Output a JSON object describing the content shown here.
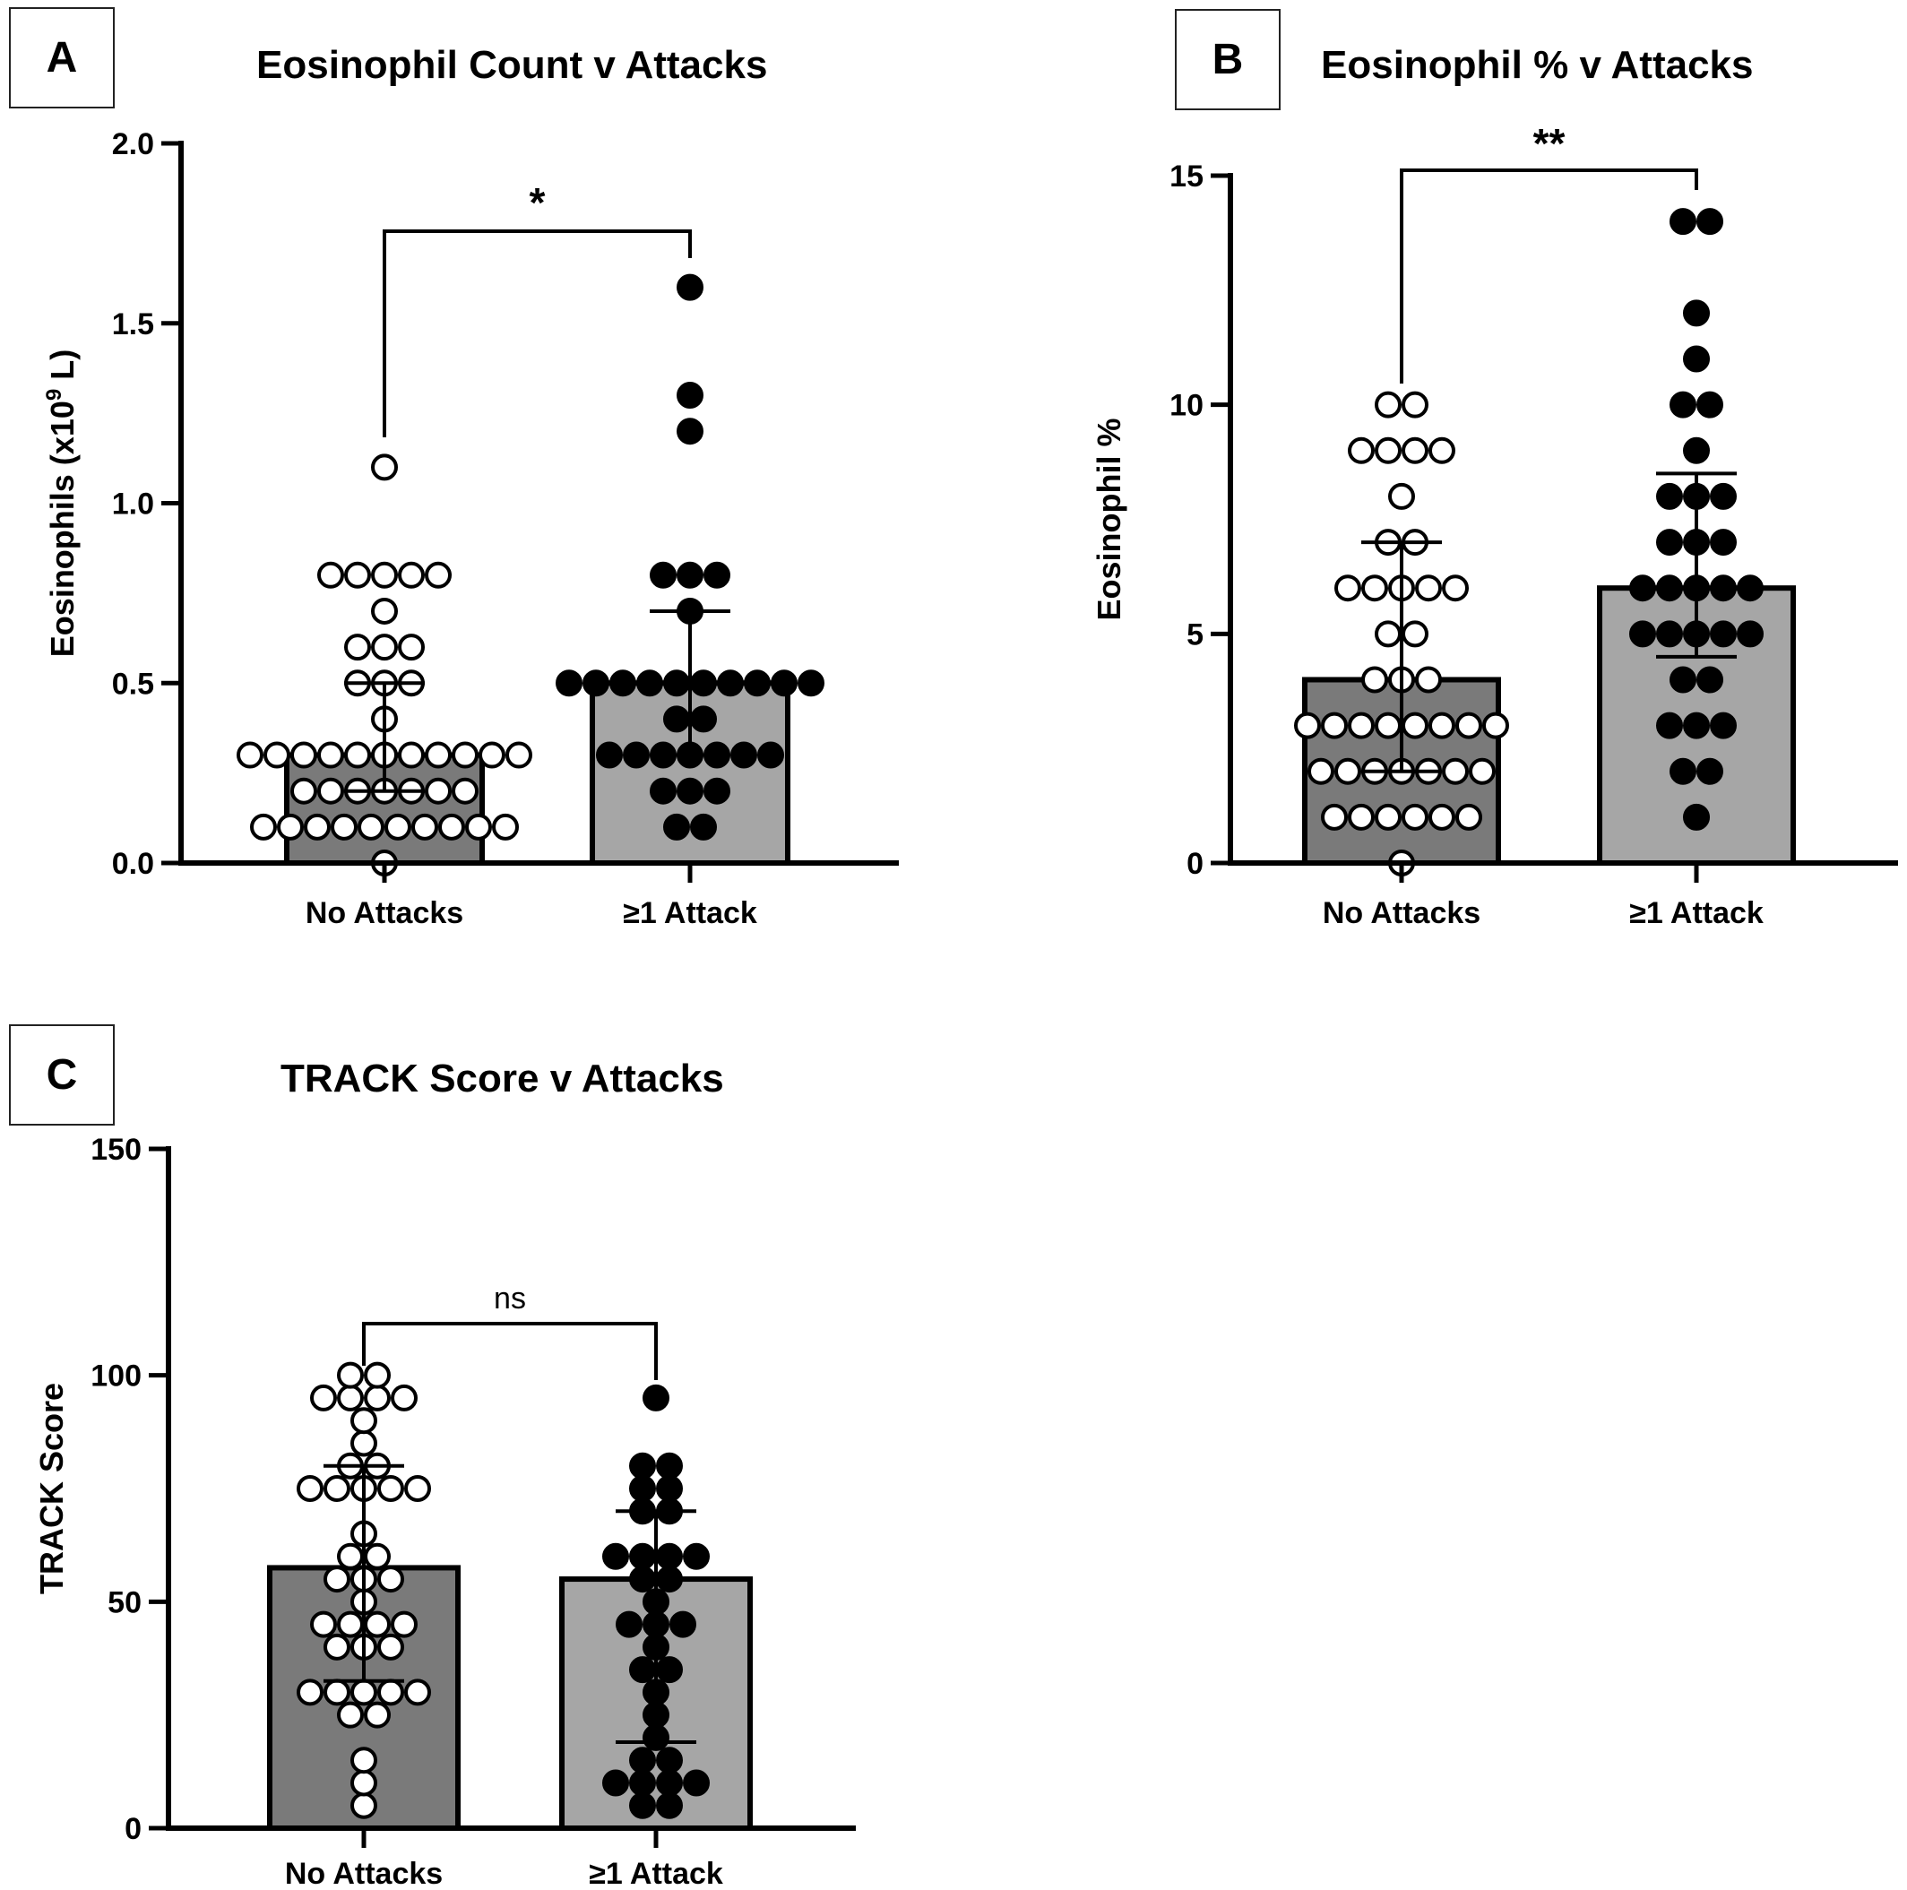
{
  "chart_data": [
    {
      "panel": "A",
      "type": "bar",
      "title": "Eosinophil Count v Attacks",
      "ylabel": "Eosinophils (x10",
      "ylabel_sup": "9",
      "ylabel_suffix": " L)",
      "ylim": [
        0,
        2.0
      ],
      "yticks": [
        0.0,
        0.5,
        1.0,
        1.5,
        2.0
      ],
      "ytick_labels": [
        "0.0",
        "0.5",
        "1.0",
        "1.5",
        "2.0"
      ],
      "categories": [
        "No Attacks",
        "≥1 Attack"
      ],
      "bar_colors": [
        "#7a7a7a",
        "#a6a6a6"
      ],
      "values": [
        0.3,
        0.5
      ],
      "error_bars": [
        [
          0.2,
          0.5
        ],
        [
          0.3,
          0.7
        ]
      ],
      "points": [
        {
          "filled": false,
          "values": [
            1.1,
            0.8,
            0.8,
            0.8,
            0.8,
            0.8,
            0.7,
            0.6,
            0.6,
            0.6,
            0.5,
            0.5,
            0.5,
            0.4,
            0.3,
            0.3,
            0.3,
            0.3,
            0.3,
            0.3,
            0.3,
            0.3,
            0.3,
            0.3,
            0.3,
            0.2,
            0.2,
            0.2,
            0.2,
            0.2,
            0.2,
            0.2,
            0.1,
            0.1,
            0.1,
            0.1,
            0.1,
            0.1,
            0.1,
            0.1,
            0.1,
            0.1,
            0.0
          ]
        },
        {
          "filled": true,
          "values": [
            1.6,
            1.3,
            1.2,
            0.8,
            0.8,
            0.8,
            0.7,
            0.5,
            0.5,
            0.5,
            0.5,
            0.5,
            0.5,
            0.5,
            0.5,
            0.5,
            0.5,
            0.4,
            0.4,
            0.3,
            0.3,
            0.3,
            0.3,
            0.3,
            0.3,
            0.3,
            0.2,
            0.2,
            0.2,
            0.1,
            0.1
          ]
        }
      ],
      "significance": "*"
    },
    {
      "panel": "B",
      "type": "bar",
      "title": "Eosinophil % v Attacks",
      "ylabel": "Eosinophil %",
      "ylabel_sup": "",
      "ylabel_suffix": "",
      "ylim": [
        0,
        15
      ],
      "yticks": [
        0,
        5,
        10,
        15
      ],
      "ytick_labels": [
        "0",
        "5",
        "10",
        "15"
      ],
      "categories": [
        "No Attacks",
        "≥1 Attack"
      ],
      "bar_colors": [
        "#7a7a7a",
        "#a6a6a6"
      ],
      "values": [
        4,
        6
      ],
      "error_bars": [
        [
          2,
          7
        ],
        [
          4.5,
          8.5
        ]
      ],
      "points": [
        {
          "filled": false,
          "values": [
            10,
            10,
            9,
            9,
            9,
            9,
            8,
            7,
            7,
            6,
            6,
            6,
            6,
            6,
            5,
            5,
            4,
            4,
            4,
            3,
            3,
            3,
            3,
            3,
            3,
            3,
            3,
            2,
            2,
            2,
            2,
            2,
            2,
            2,
            1,
            1,
            1,
            1,
            1,
            1,
            0
          ]
        },
        {
          "filled": true,
          "values": [
            14,
            14,
            12,
            11,
            10,
            10,
            9,
            8,
            8,
            8,
            7,
            7,
            7,
            6,
            6,
            6,
            6,
            6,
            5,
            5,
            5,
            5,
            5,
            4,
            4,
            3,
            3,
            3,
            2,
            2,
            1
          ]
        }
      ],
      "significance": "**"
    },
    {
      "panel": "C",
      "type": "bar",
      "title": "TRACK Score v Attacks",
      "ylabel": "TRACK Score",
      "ylabel_sup": "",
      "ylabel_suffix": "",
      "ylim": [
        0,
        150
      ],
      "yticks": [
        0,
        50,
        100,
        150
      ],
      "ytick_labels": [
        "0",
        "50",
        "100",
        "150"
      ],
      "categories": [
        "No Attacks",
        "≥1 Attack"
      ],
      "bar_colors": [
        "#7a7a7a",
        "#a6a6a6"
      ],
      "values": [
        57.5,
        55
      ],
      "error_bars": [
        [
          32.5,
          80
        ],
        [
          19,
          70
        ]
      ],
      "points": [
        {
          "filled": false,
          "values": [
            100,
            100,
            95,
            95,
            95,
            95,
            90,
            85,
            80,
            80,
            75,
            75,
            75,
            75,
            75,
            65,
            60,
            60,
            55,
            55,
            55,
            50,
            45,
            45,
            45,
            45,
            40,
            40,
            40,
            30,
            30,
            30,
            30,
            30,
            25,
            25,
            15,
            10,
            5
          ]
        },
        {
          "filled": true,
          "values": [
            95,
            80,
            80,
            75,
            75,
            70,
            70,
            60,
            60,
            60,
            60,
            55,
            55,
            50,
            45,
            45,
            45,
            40,
            35,
            35,
            30,
            25,
            20,
            15,
            15,
            10,
            10,
            10,
            10,
            5,
            5
          ]
        }
      ],
      "significance": "ns"
    }
  ]
}
